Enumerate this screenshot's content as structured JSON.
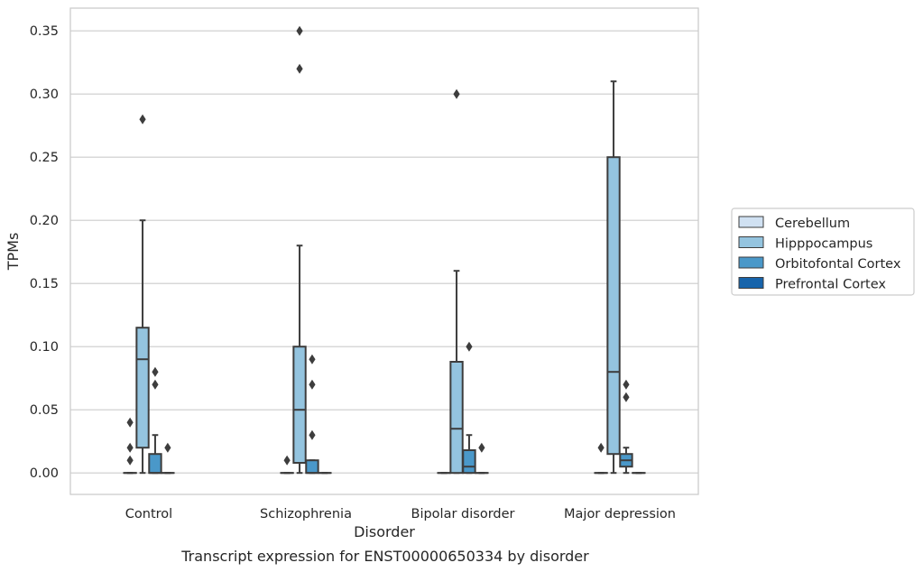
{
  "caption": "Transcript expression for ENST00000650334 by disorder",
  "chart_data": {
    "type": "box",
    "xlabel": "Disorder",
    "ylabel": "TPMs",
    "categories": [
      "Control",
      "Schizophrenia",
      "Bipolar disorder",
      "Major depression"
    ],
    "yticks": [
      "0.00",
      "0.05",
      "0.10",
      "0.15",
      "0.20",
      "0.25",
      "0.30",
      "0.35"
    ],
    "ylim": [
      -0.017,
      0.368
    ],
    "grid": true,
    "legend_position": "right",
    "series": [
      {
        "name": "Cerebellum",
        "color": "#d0e1f2",
        "boxes": [
          {
            "q1": 0,
            "median": 0,
            "q3": 0,
            "whisker_low": 0,
            "whisker_high": 0,
            "outliers": [
              0.01,
              0.02,
              0.04
            ]
          },
          {
            "q1": 0,
            "median": 0,
            "q3": 0,
            "whisker_low": 0,
            "whisker_high": 0,
            "outliers": [
              0.01
            ]
          },
          {
            "q1": 0,
            "median": 0,
            "q3": 0,
            "whisker_low": 0,
            "whisker_high": 0,
            "outliers": []
          },
          {
            "q1": 0,
            "median": 0,
            "q3": 0,
            "whisker_low": 0,
            "whisker_high": 0,
            "outliers": [
              0.02
            ]
          }
        ]
      },
      {
        "name": "Hipppocampus",
        "color": "#94c4df",
        "boxes": [
          {
            "q1": 0.02,
            "median": 0.09,
            "q3": 0.115,
            "whisker_low": 0,
            "whisker_high": 0.2,
            "outliers": [
              0.28
            ]
          },
          {
            "q1": 0.008,
            "median": 0.05,
            "q3": 0.1,
            "whisker_low": 0,
            "whisker_high": 0.18,
            "outliers": [
              0.32,
              0.35
            ]
          },
          {
            "q1": 0,
            "median": 0.035,
            "q3": 0.088,
            "whisker_low": 0,
            "whisker_high": 0.16,
            "outliers": [
              0.3
            ]
          },
          {
            "q1": 0.015,
            "median": 0.08,
            "q3": 0.25,
            "whisker_low": 0,
            "whisker_high": 0.31,
            "outliers": []
          }
        ]
      },
      {
        "name": "Orbitofontal Cortex",
        "color": "#4a98c9",
        "boxes": [
          {
            "q1": 0,
            "median": 0,
            "q3": 0.015,
            "whisker_low": 0,
            "whisker_high": 0.03,
            "outliers": [
              0.07,
              0.08
            ]
          },
          {
            "q1": 0,
            "median": 0,
            "q3": 0.01,
            "whisker_low": 0,
            "whisker_high": 0.01,
            "outliers": [
              0.03,
              0.07,
              0.09
            ]
          },
          {
            "q1": 0,
            "median": 0.005,
            "q3": 0.018,
            "whisker_low": 0,
            "whisker_high": 0.03,
            "outliers": [
              0.1
            ]
          },
          {
            "q1": 0.005,
            "median": 0.01,
            "q3": 0.015,
            "whisker_low": 0,
            "whisker_high": 0.02,
            "outliers": [
              0.06,
              0.07
            ]
          }
        ]
      },
      {
        "name": "Prefrontal Cortex",
        "color": "#1764ab",
        "boxes": [
          {
            "q1": 0,
            "median": 0,
            "q3": 0,
            "whisker_low": 0,
            "whisker_high": 0,
            "outliers": [
              0.02
            ]
          },
          {
            "q1": 0,
            "median": 0,
            "q3": 0,
            "whisker_low": 0,
            "whisker_high": 0,
            "outliers": []
          },
          {
            "q1": 0,
            "median": 0,
            "q3": 0,
            "whisker_low": 0,
            "whisker_high": 0,
            "outliers": [
              0.02
            ]
          },
          {
            "q1": 0,
            "median": 0,
            "q3": 0,
            "whisker_low": 0,
            "whisker_high": 0,
            "outliers": []
          }
        ]
      }
    ]
  }
}
